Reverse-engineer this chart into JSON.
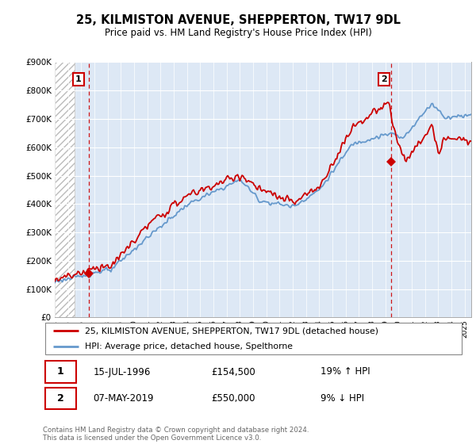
{
  "title": "25, KILMISTON AVENUE, SHEPPERTON, TW17 9DL",
  "subtitle": "Price paid vs. HM Land Registry's House Price Index (HPI)",
  "legend_line1": "25, KILMISTON AVENUE, SHEPPERTON, TW17 9DL (detached house)",
  "legend_line2": "HPI: Average price, detached house, Spelthorne",
  "point1_date": "15-JUL-1996",
  "point1_price": 154500,
  "point1_hpi": "19% ↑ HPI",
  "point2_date": "07-MAY-2019",
  "point2_price": 550000,
  "point2_hpi": "9% ↓ HPI",
  "footnote": "Contains HM Land Registry data © Crown copyright and database right 2024.\nThis data is licensed under the Open Government Licence v3.0.",
  "hpi_color": "#6699cc",
  "price_color": "#cc0000",
  "bg_color": "#dde8f5",
  "grid_color": "#ffffff",
  "ylim": [
    0,
    900000
  ],
  "yticks": [
    0,
    100000,
    200000,
    300000,
    400000,
    500000,
    600000,
    700000,
    800000,
    900000
  ],
  "xlim_start": 1994.0,
  "xlim_end": 2025.5,
  "sale1_x": 1996.583,
  "sale1_y": 154500,
  "sale2_x": 2019.417,
  "sale2_y": 550000
}
